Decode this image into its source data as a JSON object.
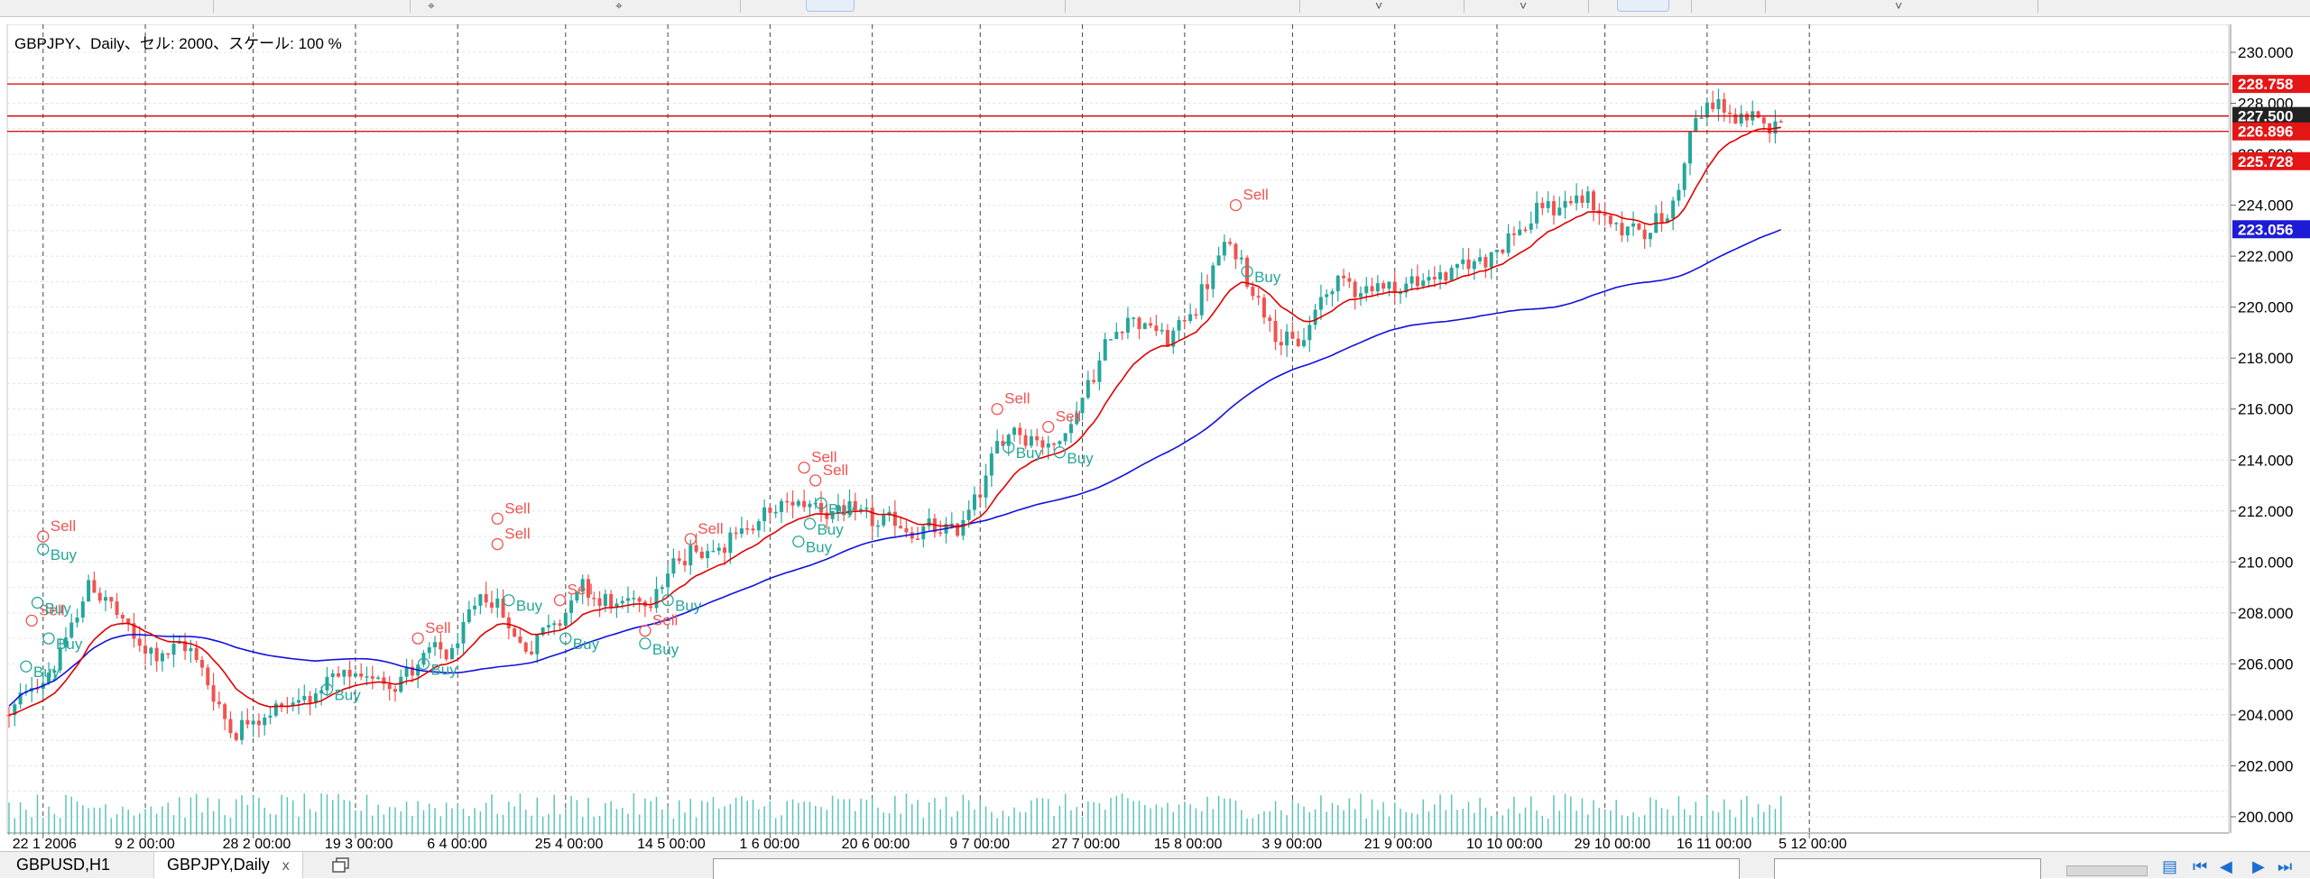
{
  "window": {
    "chart_title": "GBPJPY、Daily、セル: 2000、スケール: 100 %"
  },
  "tabs": [
    {
      "label": "GBPUSD,H1",
      "active": false
    },
    {
      "label": "GBPJPY,Daily",
      "active": true,
      "close": "x"
    }
  ],
  "icons": {
    "new_tab": "new-window-icon",
    "nav_first": "first-page-icon",
    "nav_prev": "prev-icon",
    "nav_next": "next-icon",
    "nav_last": "last-page-icon"
  },
  "colors": {
    "bull": "#26a69a",
    "bear": "#ef5350",
    "ma_fast": "#e00000",
    "ma_slow": "#1010e0",
    "hline": "#d00000",
    "vline": "#444444",
    "grid": "#e4e4e4",
    "volume": "#5cc4bc",
    "label_red": "#e51616",
    "label_dark": "#222222",
    "label_blue": "#1c1cd6",
    "buy_text": "#26a69a",
    "sell_text": "#ef5350"
  },
  "chart_data": {
    "type": "candlestick",
    "symbol": "GBPJPY",
    "timeframe": "Daily",
    "ylim": [
      200.0,
      230.0
    ],
    "y_ticks": [
      "230.000",
      "228.000",
      "226.000",
      "224.000",
      "222.000",
      "220.000",
      "218.000",
      "216.000",
      "214.000",
      "212.000",
      "210.000",
      "208.000",
      "206.000",
      "204.000",
      "202.000",
      "200.000"
    ],
    "x_ticks": [
      "22 1 2006",
      "9 2 00:00",
      "28 2 00:00",
      "19 3 00:00",
      "6 4 00:00",
      "25 4 00:00",
      "14 5 00:00",
      "1 6 00:00",
      "20 6 00:00",
      "9 7 00:00",
      "27 7 00:00",
      "15 8 00:00",
      "3 9 00:00",
      "21 9 00:00",
      "10 10 00:00",
      "29 10 00:00",
      "16 11 00:00",
      "5 12 00:00"
    ],
    "grid": true,
    "price_lines": [
      {
        "value": 228.758,
        "label": "228.758",
        "style": "red"
      },
      {
        "value": 227.5,
        "label": "227.500",
        "style": "dark"
      },
      {
        "value": 226.896,
        "label": "226.896",
        "style": "red"
      }
    ],
    "price_labels": [
      {
        "value": 225.728,
        "label": "225.728",
        "style": "red"
      },
      {
        "value": 223.056,
        "label": "223.056",
        "style": "blue"
      }
    ],
    "anchors": [
      {
        "day": 0,
        "price": 204.0
      },
      {
        "day": 10,
        "price": 207.0
      },
      {
        "day": 14,
        "price": 209.5
      },
      {
        "day": 22,
        "price": 206.5
      },
      {
        "day": 32,
        "price": 206.5
      },
      {
        "day": 38,
        "price": 203.5
      },
      {
        "day": 54,
        "price": 205.0
      },
      {
        "day": 66,
        "price": 205.5
      },
      {
        "day": 78,
        "price": 206.5
      },
      {
        "day": 84,
        "price": 209.0
      },
      {
        "day": 90,
        "price": 206.5
      },
      {
        "day": 100,
        "price": 209.0
      },
      {
        "day": 108,
        "price": 208.0
      },
      {
        "day": 120,
        "price": 210.5
      },
      {
        "day": 140,
        "price": 212.5
      },
      {
        "day": 150,
        "price": 211.5
      },
      {
        "day": 166,
        "price": 211.0
      },
      {
        "day": 176,
        "price": 215.5
      },
      {
        "day": 184,
        "price": 214.5
      },
      {
        "day": 196,
        "price": 220.0
      },
      {
        "day": 204,
        "price": 218.5
      },
      {
        "day": 214,
        "price": 222.5
      },
      {
        "day": 226,
        "price": 218.0
      },
      {
        "day": 232,
        "price": 221.0
      },
      {
        "day": 244,
        "price": 220.8
      },
      {
        "day": 256,
        "price": 221.5
      },
      {
        "day": 268,
        "price": 223.5
      },
      {
        "day": 276,
        "price": 224.5
      },
      {
        "day": 282,
        "price": 223.0
      },
      {
        "day": 292,
        "price": 223.5
      },
      {
        "day": 296,
        "price": 227.5
      },
      {
        "day": 301,
        "price": 228.0
      },
      {
        "day": 305,
        "price": 227.0
      },
      {
        "day": 311,
        "price": 227.5
      }
    ],
    "signals": [
      {
        "day": 6,
        "price": 211.0,
        "text": "Sell"
      },
      {
        "day": 6,
        "price": 210.5,
        "text": "Buy"
      },
      {
        "day": 4,
        "price": 207.7,
        "text": "Sell"
      },
      {
        "day": 5,
        "price": 208.4,
        "text": "Buy"
      },
      {
        "day": 7,
        "price": 207.0,
        "text": "Buy"
      },
      {
        "day": 3,
        "price": 205.9,
        "text": "Buy"
      },
      {
        "day": 56,
        "price": 205.0,
        "text": "Buy"
      },
      {
        "day": 72,
        "price": 207.0,
        "text": "Sell"
      },
      {
        "day": 73,
        "price": 206.0,
        "text": "Buy"
      },
      {
        "day": 86,
        "price": 211.7,
        "text": "Sell"
      },
      {
        "day": 86,
        "price": 210.7,
        "text": "Sell"
      },
      {
        "day": 88,
        "price": 208.5,
        "text": "Buy"
      },
      {
        "day": 97,
        "price": 208.5,
        "text": "Sell"
      },
      {
        "day": 98,
        "price": 207.0,
        "text": "Buy"
      },
      {
        "day": 112,
        "price": 207.3,
        "text": "Sell"
      },
      {
        "day": 112,
        "price": 206.8,
        "text": "Buy"
      },
      {
        "day": 116,
        "price": 208.5,
        "text": "Buy"
      },
      {
        "day": 120,
        "price": 210.9,
        "text": "Sell"
      },
      {
        "day": 140,
        "price": 213.7,
        "text": "Sell"
      },
      {
        "day": 142,
        "price": 213.2,
        "text": "Sell"
      },
      {
        "day": 143,
        "price": 212.3,
        "text": "Buy"
      },
      {
        "day": 141,
        "price": 211.5,
        "text": "Buy"
      },
      {
        "day": 139,
        "price": 210.8,
        "text": "Buy"
      },
      {
        "day": 174,
        "price": 216.0,
        "text": "Sell"
      },
      {
        "day": 176,
        "price": 214.5,
        "text": "Buy"
      },
      {
        "day": 183,
        "price": 215.3,
        "text": "Sell"
      },
      {
        "day": 185,
        "price": 214.3,
        "text": "Buy"
      },
      {
        "day": 216,
        "price": 224.0,
        "text": "Sell"
      },
      {
        "day": 218,
        "price": 221.4,
        "text": "Buy"
      }
    ]
  }
}
